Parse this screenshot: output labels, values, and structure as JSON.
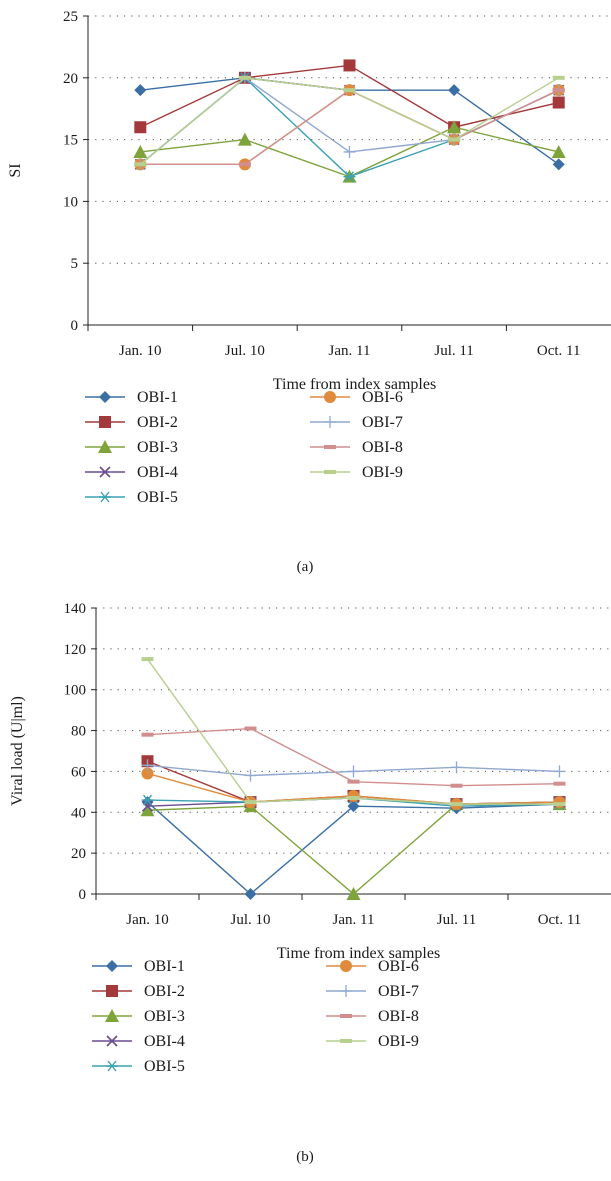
{
  "charts": [
    {
      "type": "line",
      "panel_label": "(a)",
      "title": "",
      "categories": [
        "Jan. 10",
        "Jul. 10",
        "Jan. 11",
        "Jul. 11",
        "Oct. 11"
      ],
      "xlabel": "Time from index samples",
      "ylabel": "SI",
      "ylim": [
        0,
        25
      ],
      "yticks": [
        0,
        5,
        10,
        15,
        20,
        25
      ],
      "grid": "horizontal dotted",
      "legend_position": "bottom",
      "series": [
        {
          "name": "OBI-1",
          "color": "#3b6ea5",
          "marker": "diamond",
          "values": [
            19,
            20,
            19,
            19,
            13
          ]
        },
        {
          "name": "OBI-2",
          "color": "#a3393a",
          "marker": "square",
          "values": [
            16,
            20,
            21,
            16,
            18
          ]
        },
        {
          "name": "OBI-3",
          "color": "#7ea33b",
          "marker": "triangle",
          "values": [
            14,
            15,
            12,
            16,
            14
          ]
        },
        {
          "name": "OBI-4",
          "color": "#6a4c93",
          "marker": "x",
          "values": [
            13,
            20,
            19,
            15,
            19
          ]
        },
        {
          "name": "OBI-5",
          "color": "#3aa0b4",
          "marker": "star",
          "values": [
            13,
            20,
            12,
            15,
            19
          ]
        },
        {
          "name": "OBI-6",
          "color": "#e08a3c",
          "marker": "circle",
          "values": [
            13,
            13,
            19,
            15,
            19
          ]
        },
        {
          "name": "OBI-7",
          "color": "#8fa8cf",
          "marker": "plus",
          "values": [
            13,
            20,
            14,
            15,
            19
          ]
        },
        {
          "name": "OBI-8",
          "color": "#d28e8e",
          "marker": "dash",
          "values": [
            13,
            13,
            19,
            15,
            19
          ]
        },
        {
          "name": "OBI-9",
          "color": "#b7cf8f",
          "marker": "dash",
          "values": [
            13,
            20,
            19,
            15,
            20
          ]
        }
      ]
    },
    {
      "type": "line",
      "panel_label": "(b)",
      "title": "",
      "categories": [
        "Jan. 10",
        "Jul. 10",
        "Jan. 11",
        "Jul. 11",
        "Oct. 11"
      ],
      "xlabel": "Time from index samples",
      "ylabel": "Viral load (U|ml)",
      "ylim": [
        0,
        140
      ],
      "yticks": [
        0,
        20,
        40,
        60,
        80,
        100,
        120,
        140
      ],
      "grid": "horizontal dotted",
      "legend_position": "bottom",
      "series": [
        {
          "name": "OBI-1",
          "color": "#3b6ea5",
          "marker": "diamond",
          "values": [
            45,
            0,
            43,
            42,
            44
          ]
        },
        {
          "name": "OBI-2",
          "color": "#a3393a",
          "marker": "square",
          "values": [
            65,
            45,
            48,
            44,
            45
          ]
        },
        {
          "name": "OBI-3",
          "color": "#7ea33b",
          "marker": "triangle",
          "values": [
            41,
            43,
            0,
            44,
            44
          ]
        },
        {
          "name": "OBI-4",
          "color": "#6a4c93",
          "marker": "x",
          "values": [
            43,
            45,
            47,
            44,
            45
          ]
        },
        {
          "name": "OBI-5",
          "color": "#3aa0b4",
          "marker": "star",
          "values": [
            46,
            45,
            47,
            43,
            44
          ]
        },
        {
          "name": "OBI-6",
          "color": "#e08a3c",
          "marker": "circle",
          "values": [
            59,
            45,
            48,
            44,
            45
          ]
        },
        {
          "name": "OBI-7",
          "color": "#8fa8cf",
          "marker": "plus",
          "values": [
            63,
            58,
            60,
            62,
            60
          ]
        },
        {
          "name": "OBI-8",
          "color": "#d28e8e",
          "marker": "dash",
          "values": [
            78,
            81,
            55,
            53,
            54
          ]
        },
        {
          "name": "OBI-9",
          "color": "#b7cf8f",
          "marker": "dash",
          "values": [
            115,
            45,
            47,
            44,
            44
          ]
        }
      ]
    }
  ]
}
